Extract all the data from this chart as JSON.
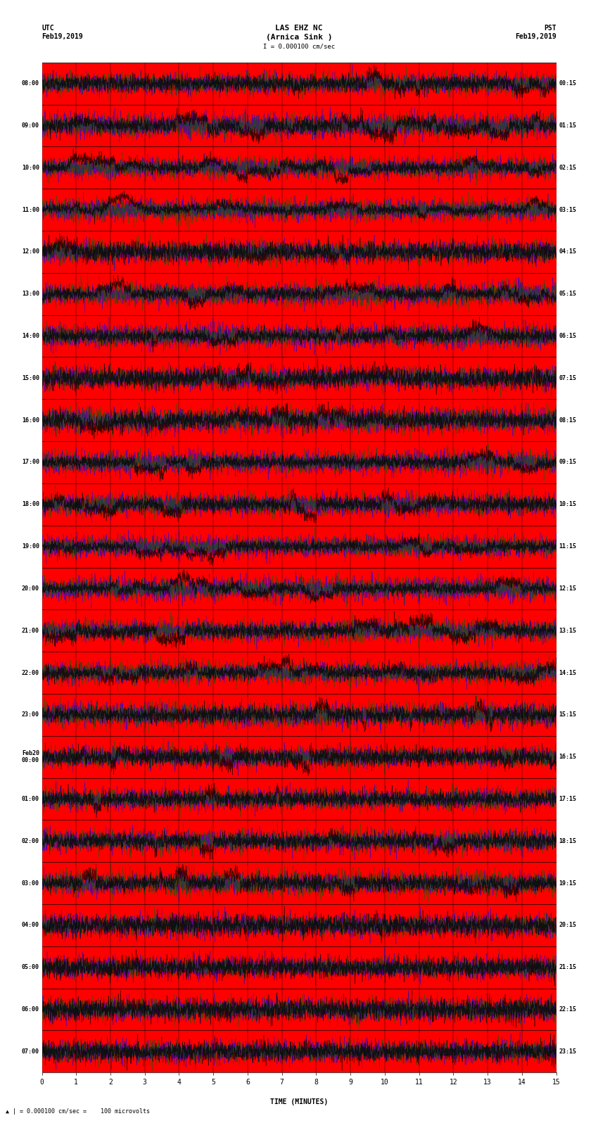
{
  "title_line1": "LAS EHZ NC",
  "title_line2": "(Arnica Sink )",
  "scale_text": "I = 0.000100 cm/sec",
  "left_header": "UTC\nFeb19,2019",
  "right_header": "PST\nFeb19,2019",
  "bottom_label": "TIME (MINUTES)",
  "bottom_note": "= 0.000100 cm/sec =    100 microvolts",
  "utc_times": [
    "08:00",
    "09:00",
    "10:00",
    "11:00",
    "12:00",
    "13:00",
    "14:00",
    "15:00",
    "16:00",
    "17:00",
    "18:00",
    "19:00",
    "20:00",
    "21:00",
    "22:00",
    "23:00",
    "Feb20\n00:00",
    "01:00",
    "02:00",
    "03:00",
    "04:00",
    "05:00",
    "06:00",
    "07:00"
  ],
  "pst_times": [
    "00:15",
    "01:15",
    "02:15",
    "03:15",
    "04:15",
    "05:15",
    "06:15",
    "07:15",
    "08:15",
    "09:15",
    "10:15",
    "11:15",
    "12:15",
    "13:15",
    "14:15",
    "15:15",
    "16:15",
    "17:15",
    "18:15",
    "19:15",
    "20:15",
    "21:15",
    "22:15",
    "23:15"
  ],
  "x_ticks": [
    0,
    1,
    2,
    3,
    4,
    5,
    6,
    7,
    8,
    9,
    10,
    11,
    12,
    13,
    14,
    15
  ],
  "x_labels": [
    "0",
    "1",
    "2",
    "3",
    "4",
    "5",
    "6",
    "7",
    "8",
    "9",
    "10",
    "11",
    "12",
    "13",
    "14",
    "15"
  ],
  "xlim": [
    0,
    15
  ],
  "n_rows": 24,
  "bg_color": "#ffffff",
  "plot_bg": "#ff0000",
  "grid_color": "#000000",
  "minute_interval": 15
}
